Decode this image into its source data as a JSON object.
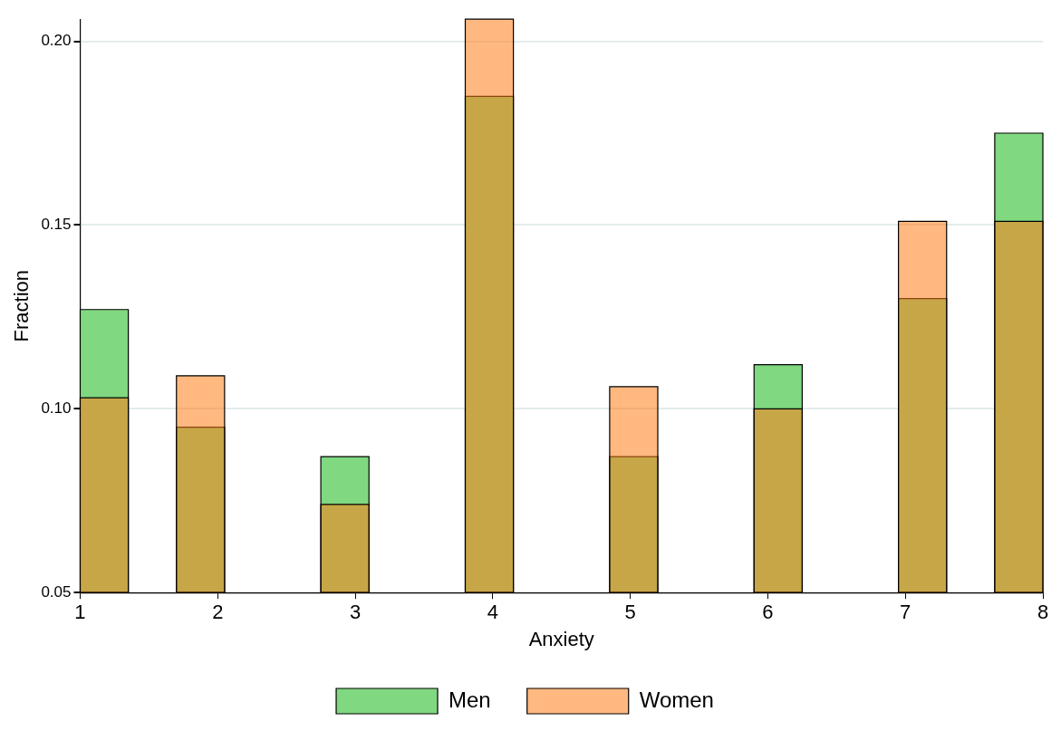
{
  "chart_data": {
    "type": "histogram",
    "xlabel": "Anxiety",
    "ylabel": "Fraction",
    "bins": [
      1,
      1.35,
      1.7,
      2.05,
      2.75,
      3.1,
      3.8,
      4.15,
      4.85,
      5.2,
      5.9,
      6.25,
      6.95,
      7.3,
      7.65,
      8
    ],
    "series": [
      {
        "name": "Men",
        "color": "#80d880",
        "values": [
          0.127,
          null,
          0.095,
          null,
          0.087,
          null,
          0.185,
          null,
          0.087,
          null,
          0.112,
          null,
          0.13,
          null,
          0.175
        ]
      },
      {
        "name": "Women",
        "color": "#ffb880",
        "values": [
          0.103,
          null,
          0.109,
          null,
          0.074,
          null,
          0.206,
          null,
          0.106,
          null,
          0.1,
          null,
          0.151,
          null,
          0.151
        ]
      }
    ],
    "xlim": [
      1,
      8
    ],
    "xticks": [
      1,
      2,
      3,
      4,
      5,
      6,
      7,
      8
    ],
    "ylim": [
      0.05,
      0.206
    ],
    "yticks": [
      {
        "value": 0.05,
        "label": "0.05"
      },
      {
        "value": 0.1,
        "label": "0.10"
      },
      {
        "value": 0.15,
        "label": "0.15"
      },
      {
        "value": 0.2,
        "label": "0.20"
      }
    ],
    "grid": "y",
    "legend": "bottom"
  }
}
